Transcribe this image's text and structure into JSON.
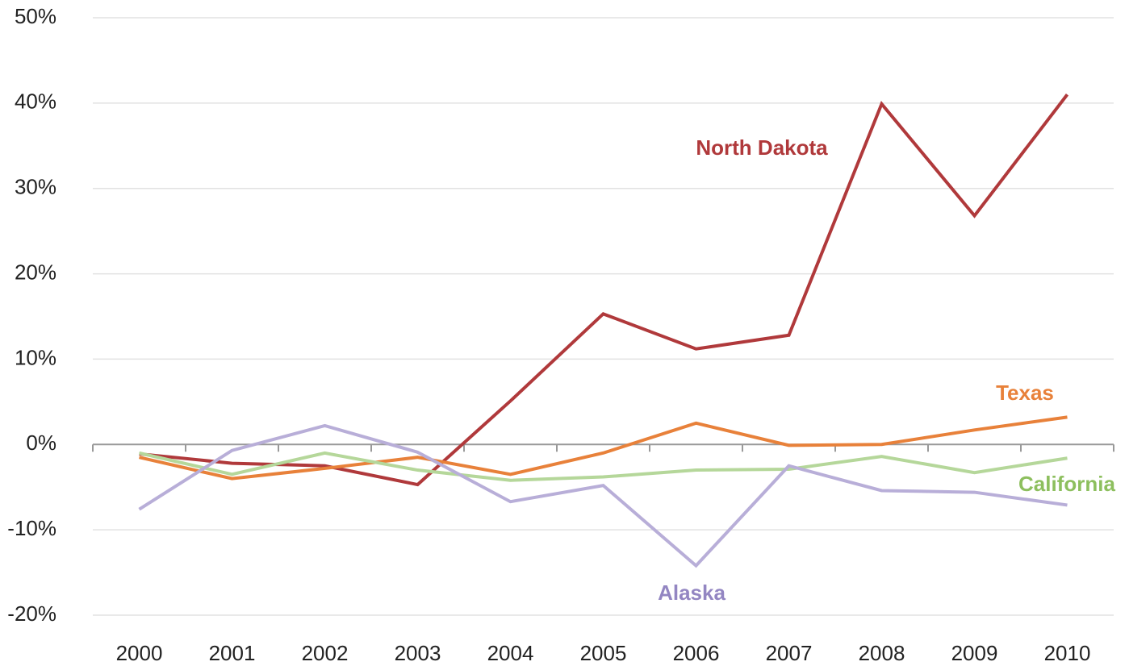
{
  "chart_data": {
    "type": "line",
    "categories": [
      "2000",
      "2001",
      "2002",
      "2003",
      "2004",
      "2005",
      "2006",
      "2007",
      "2008",
      "2009",
      "2010"
    ],
    "series": [
      {
        "name": "North Dakota",
        "color": "#b0393b",
        "label_color": "#b0393b",
        "values": [
          -1.1,
          -2.2,
          -2.5,
          -4.7,
          5.1,
          15.3,
          11.2,
          12.8,
          39.9,
          26.8,
          41.0
        ]
      },
      {
        "name": "Texas",
        "color": "#e8813a",
        "label_color": "#e8813a",
        "values": [
          -1.5,
          -4.0,
          -2.8,
          -1.5,
          -3.5,
          -1.0,
          2.5,
          -0.1,
          0.0,
          1.7,
          3.2
        ]
      },
      {
        "name": "California",
        "color": "#b5d79a",
        "label_color": "#8dbf5e",
        "values": [
          -1.0,
          -3.5,
          -1.0,
          -3.0,
          -4.2,
          -3.8,
          -3.0,
          -2.9,
          -1.4,
          -3.3,
          -1.6
        ]
      },
      {
        "name": "Alaska",
        "color": "#b8aed8",
        "label_color": "#9386c2",
        "values": [
          -7.6,
          -0.7,
          2.2,
          -0.9,
          -6.7,
          -4.8,
          -14.2,
          -2.5,
          -5.4,
          -5.6,
          -7.1
        ]
      }
    ],
    "ylim": [
      -20,
      50
    ],
    "yticks": [
      {
        "value": -20,
        "label": "-20%"
      },
      {
        "value": -10,
        "label": "-10%"
      },
      {
        "value": 0,
        "label": "0%"
      },
      {
        "value": 10,
        "label": "10%"
      },
      {
        "value": 20,
        "label": "20%"
      },
      {
        "value": 30,
        "label": "30%"
      },
      {
        "value": 40,
        "label": "40%"
      },
      {
        "value": 50,
        "label": "50%"
      }
    ],
    "grid": true
  }
}
